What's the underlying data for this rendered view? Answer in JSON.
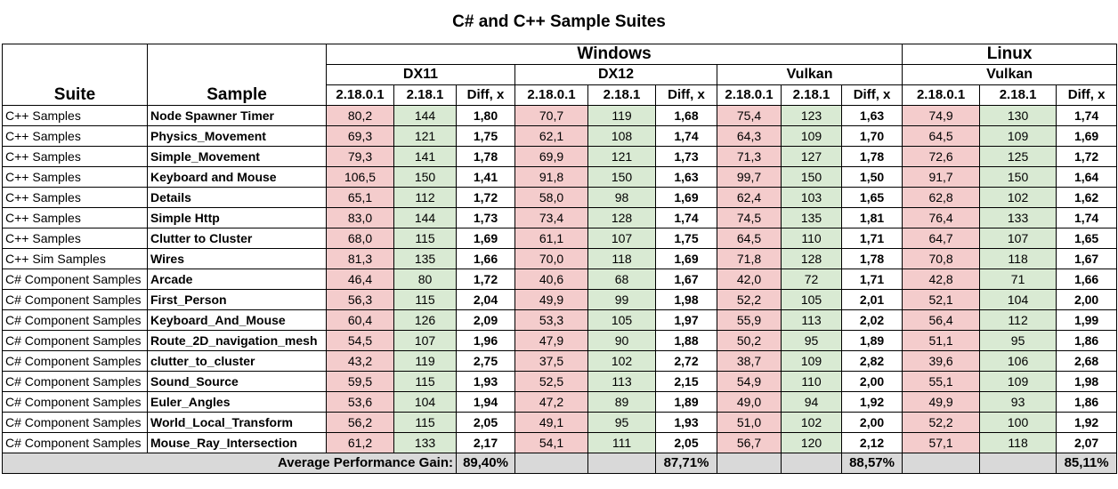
{
  "title": "C# and C++ Sample Suites",
  "headers": {
    "suite": "Suite",
    "sample": "Sample",
    "os": [
      "Windows",
      "Linux"
    ],
    "apis": [
      "DX11",
      "DX12",
      "Vulkan",
      "Vulkan"
    ],
    "versions": [
      "2.18.0.1",
      "2.18.1",
      "Diff, x",
      "2.18.0.1",
      "2.18.1",
      "Diff, x",
      "2.18.0.1",
      "2.18.1",
      "Diff, x",
      "2.18.0.1",
      "2.18.1",
      "Diff, x"
    ]
  },
  "rows": [
    [
      "C++ Samples",
      "Node Spawner Timer",
      "80,2",
      "144",
      "1,80",
      "70,7",
      "119",
      "1,68",
      "75,4",
      "123",
      "1,63",
      "74,9",
      "130",
      "1,74"
    ],
    [
      "C++ Samples",
      "Physics_Movement",
      "69,3",
      "121",
      "1,75",
      "62,1",
      "108",
      "1,74",
      "64,3",
      "109",
      "1,70",
      "64,5",
      "109",
      "1,69"
    ],
    [
      "C++ Samples",
      "Simple_Movement",
      "79,3",
      "141",
      "1,78",
      "69,9",
      "121",
      "1,73",
      "71,3",
      "127",
      "1,78",
      "72,6",
      "125",
      "1,72"
    ],
    [
      "C++ Samples",
      "Keyboard and Mouse",
      "106,5",
      "150",
      "1,41",
      "91,8",
      "150",
      "1,63",
      "99,7",
      "150",
      "1,50",
      "91,7",
      "150",
      "1,64"
    ],
    [
      "C++ Samples",
      "Details",
      "65,1",
      "112",
      "1,72",
      "58,0",
      "98",
      "1,69",
      "62,4",
      "103",
      "1,65",
      "62,8",
      "102",
      "1,62"
    ],
    [
      "C++ Samples",
      "Simple Http",
      "83,0",
      "144",
      "1,73",
      "73,4",
      "128",
      "1,74",
      "74,5",
      "135",
      "1,81",
      "76,4",
      "133",
      "1,74"
    ],
    [
      "C++ Samples",
      "Clutter to Cluster",
      "68,0",
      "115",
      "1,69",
      "61,1",
      "107",
      "1,75",
      "64,5",
      "110",
      "1,71",
      "64,7",
      "107",
      "1,65"
    ],
    [
      "C++ Sim Samples",
      "Wires",
      "81,3",
      "135",
      "1,66",
      "70,0",
      "118",
      "1,69",
      "71,8",
      "128",
      "1,78",
      "70,8",
      "118",
      "1,67"
    ],
    [
      "C# Component Samples",
      "Arcade",
      "46,4",
      "80",
      "1,72",
      "40,6",
      "68",
      "1,67",
      "42,0",
      "72",
      "1,71",
      "42,8",
      "71",
      "1,66"
    ],
    [
      "C# Component Samples",
      "First_Person",
      "56,3",
      "115",
      "2,04",
      "49,9",
      "99",
      "1,98",
      "52,2",
      "105",
      "2,01",
      "52,1",
      "104",
      "2,00"
    ],
    [
      "C# Component Samples",
      "Keyboard_And_Mouse",
      "60,4",
      "126",
      "2,09",
      "53,3",
      "105",
      "1,97",
      "55,9",
      "113",
      "2,02",
      "56,4",
      "112",
      "1,99"
    ],
    [
      "C# Component Samples",
      "Route_2D_navigation_mesh",
      "54,5",
      "107",
      "1,96",
      "47,9",
      "90",
      "1,88",
      "50,2",
      "95",
      "1,89",
      "51,1",
      "95",
      "1,86"
    ],
    [
      "C# Component Samples",
      "clutter_to_cluster",
      "43,2",
      "119",
      "2,75",
      "37,5",
      "102",
      "2,72",
      "38,7",
      "109",
      "2,82",
      "39,6",
      "106",
      "2,68"
    ],
    [
      "C# Component Samples",
      "Sound_Source",
      "59,5",
      "115",
      "1,93",
      "52,5",
      "113",
      "2,15",
      "54,9",
      "110",
      "2,00",
      "55,1",
      "109",
      "1,98"
    ],
    [
      "C# Component Samples",
      "Euler_Angles",
      "53,6",
      "104",
      "1,94",
      "47,2",
      "89",
      "1,89",
      "49,0",
      "94",
      "1,92",
      "49,9",
      "93",
      "1,86"
    ],
    [
      "C# Component Samples",
      "World_Local_Transform",
      "56,2",
      "115",
      "2,05",
      "49,1",
      "95",
      "1,93",
      "51,0",
      "102",
      "2,00",
      "52,2",
      "100",
      "1,92"
    ],
    [
      "C# Component Samples",
      "Mouse_Ray_Intersection",
      "61,2",
      "133",
      "2,17",
      "54,1",
      "111",
      "2,05",
      "56,7",
      "120",
      "2,12",
      "57,1",
      "118",
      "2,07"
    ]
  ],
  "footer": {
    "label": "Average Performance Gain:",
    "values": [
      "89,40%",
      "87,71%",
      "88,57%",
      "85,11%"
    ]
  },
  "colors": {
    "old_version_fill": "#f4cccc",
    "new_version_fill": "#d9ead3",
    "footer_fill": "#d9d9d9"
  },
  "chart_data": {
    "type": "table",
    "title": "C# and C++ Sample Suites",
    "columns": [
      "Suite",
      "Sample",
      "Windows DX11 2.18.0.1",
      "Windows DX11 2.18.1",
      "Windows DX11 Diff, x",
      "Windows DX12 2.18.0.1",
      "Windows DX12 2.18.1",
      "Windows DX12 Diff, x",
      "Windows Vulkan 2.18.0.1",
      "Windows Vulkan 2.18.1",
      "Windows Vulkan Diff, x",
      "Linux Vulkan 2.18.0.1",
      "Linux Vulkan 2.18.1",
      "Linux Vulkan Diff, x"
    ],
    "average_performance_gain": [
      89.4,
      87.71,
      88.57,
      85.11
    ]
  }
}
